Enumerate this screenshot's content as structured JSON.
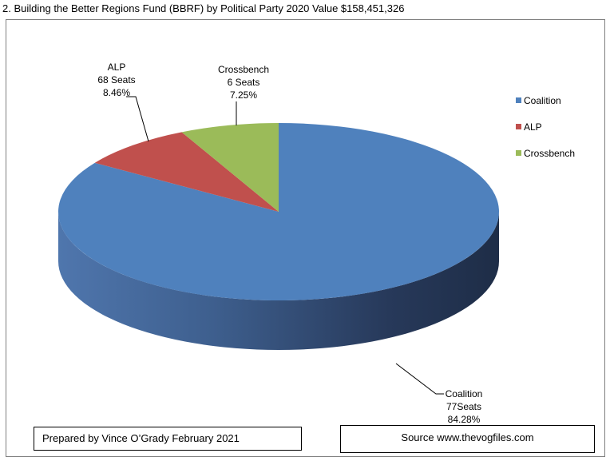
{
  "page": {
    "title": "2. Building the Better Regions Fund (BBRF) by Political Party 2020 Value $158,451,326",
    "prepared_by": "Prepared by Vince O’Grady February 2021",
    "source": "Source www.thevogfiles.com"
  },
  "chart_data": {
    "type": "pie",
    "title": "2. Building the Better Regions Fund (BBRF) by Political Party 2020 Value $158,451,326",
    "categories": [
      "Coalition",
      "ALP",
      "Crossbench"
    ],
    "values": [
      84.28,
      8.46,
      7.25
    ],
    "units": "%",
    "series": [
      {
        "name": "Coalition",
        "value": 84.28,
        "seats_label": "77Seats",
        "percent_label": "84.28%",
        "color": "#4f81bd"
      },
      {
        "name": "ALP",
        "value": 8.46,
        "seats_label": "68 Seats",
        "percent_label": "8.46%",
        "color": "#c0504d"
      },
      {
        "name": "Crossbench",
        "value": 7.25,
        "seats_label": "6 Seats",
        "percent_label": "7.25%",
        "color": "#9bbb59"
      }
    ],
    "legend": {
      "placement": "right",
      "entries": [
        "Coalition",
        "ALP",
        "Crossbench"
      ]
    },
    "three_d": true
  }
}
